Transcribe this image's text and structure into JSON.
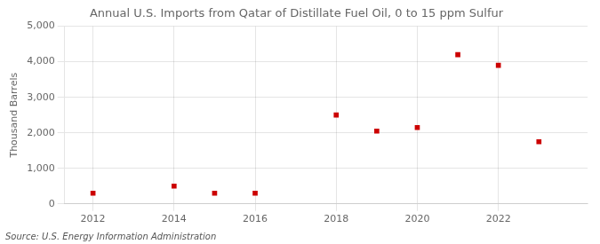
{
  "chart_data": {
    "type": "scatter",
    "title": "Annual U.S. Imports from Qatar of Distillate Fuel Oil, 0 to 15 ppm Sulfur",
    "ylabel": "Thousand Barrels",
    "annotations": [
      "Source: U.S. Energy Information Administration"
    ],
    "x": [
      2012,
      2014,
      2015,
      2016,
      2018,
      2019,
      2020,
      2021,
      2022,
      2023
    ],
    "values": [
      300,
      500,
      300,
      300,
      2500,
      2050,
      2150,
      4200,
      3900,
      1750
    ],
    "color": "#cc0000",
    "marker": "square",
    "xlim": [
      2011.3,
      2024.2
    ],
    "xticks": [
      2012,
      2014,
      2016,
      2018,
      2020,
      2022
    ],
    "ylim": [
      0,
      5000
    ],
    "yticks": [
      0,
      {
        "value": 1000,
        "label": "1,000"
      },
      {
        "value": 2000,
        "label": "2,000"
      },
      {
        "value": 3000,
        "label": "3,000"
      },
      {
        "value": 4000,
        "label": "4,000"
      },
      {
        "value": 5000,
        "label": "5,000"
      }
    ],
    "grid": true
  }
}
